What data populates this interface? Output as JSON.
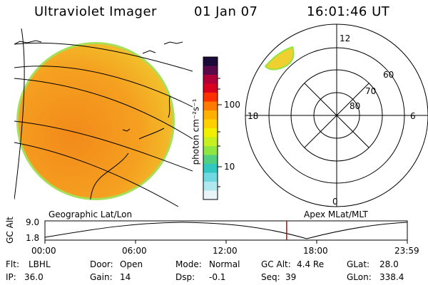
{
  "header": {
    "title": "Ultraviolet Imager",
    "date": "01 Jan 07",
    "time": "16:01:46 UT"
  },
  "colorbar": {
    "unit_label": "photon cm⁻²s⁻¹",
    "ticks": [
      "100",
      "10"
    ],
    "colors": [
      "#1a0a3a",
      "#5a0a4a",
      "#b0003a",
      "#d8001e",
      "#ff3000",
      "#ff7a00",
      "#ffb000",
      "#ffd000",
      "#f0f000",
      "#c8f020",
      "#8fe640",
      "#50d080",
      "#30c8c0",
      "#70d8e0",
      "#b0e8f0",
      "#e8f4f8"
    ]
  },
  "polar_plot": {
    "mlt_labels": {
      "top": "12",
      "right": "6",
      "bottom": "0",
      "left": "18"
    },
    "lat_labels": [
      "60",
      "70",
      "80"
    ]
  },
  "timeline": {
    "left_label": "Geographic Lat/Lon",
    "right_label": "Apex MLat/MLT",
    "yaxis_label": "GC Alt",
    "ytick_top": "9.0",
    "ytick_bottom": "1.8",
    "xticks": [
      "00:00",
      "06:00",
      "12:00",
      "18:00",
      "23:59"
    ],
    "current_time_fraction": 0.667
  },
  "info": {
    "flt_label": "Flt:",
    "flt_value": "LBHL",
    "door_label": "Door:",
    "door_value": "Open",
    "mode_label": "Mode:",
    "mode_value": "Normal",
    "gcalt_label": "GC Alt:",
    "gcalt_value": "4.4 Re",
    "glat_label": "GLat:",
    "glat_value": "28.0",
    "ip_label": "IP:",
    "ip_value": "36.0",
    "gain_label": "Gain:",
    "gain_value": "14",
    "dsp_label": "Dsp:",
    "dsp_value": "-0.1",
    "seq_label": "Seq:",
    "seq_value": "39",
    "glon_label": "GLon:",
    "glon_value": "338.4"
  }
}
